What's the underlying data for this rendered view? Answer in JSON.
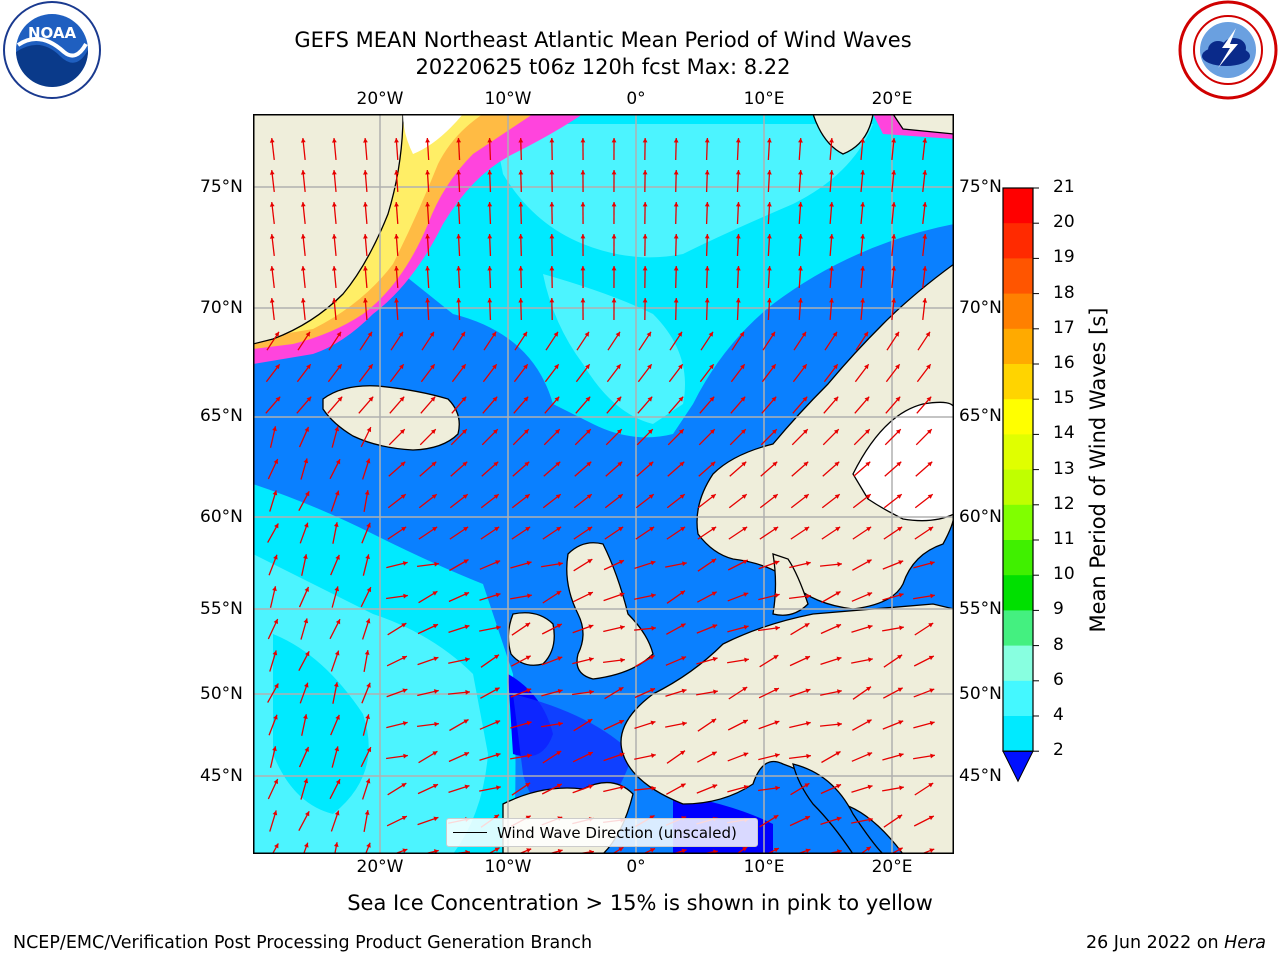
{
  "title_line1": "GEFS MEAN Northeast Atlantic Mean Period of Wind Waves",
  "title_line2": "20220625 t06z 120h fcst   Max: 8.22",
  "subtitle": "Sea Ice Concentration > 15% is shown in pink to yellow",
  "footer_left": "NCEP/EMC/Verification Post Processing Product Generation Branch",
  "footer_right_prefix": "26 Jun 2022 on ",
  "footer_right_host": "Hera",
  "legend_label": "Wind Wave Direction (unscaled)",
  "logos": {
    "left": "noaa-logo",
    "right": "nws-logo"
  },
  "map": {
    "lon_labels": [
      "20°W",
      "10°W",
      "0°",
      "10°E",
      "20°E"
    ],
    "lat_labels": [
      "75°N",
      "70°N",
      "65°N",
      "60°N",
      "55°N",
      "50°N",
      "45°N"
    ],
    "land_color": "#efeedb",
    "ocean_colors": [
      "#0a80ff",
      "#00eaff",
      "#4cf4ff"
    ],
    "arrow_color": "#e60000"
  },
  "colorbar": {
    "title": "Mean Period of Wind Waves [s]",
    "ticks": [
      "21",
      "20",
      "19",
      "18",
      "17",
      "16",
      "15",
      "14",
      "13",
      "12",
      "11",
      "10",
      "9",
      "8",
      "6",
      "4",
      "2"
    ],
    "colors": [
      "#ff0000",
      "#ff2a00",
      "#ff5500",
      "#ff8000",
      "#ffaa00",
      "#ffd400",
      "#ffff00",
      "#e0ff00",
      "#c0ff00",
      "#80ff00",
      "#40f000",
      "#00e000",
      "#44f080",
      "#88ffe0",
      "#44f8ff",
      "#00eaff",
      "#0a80ff",
      "#0010ff"
    ]
  }
}
